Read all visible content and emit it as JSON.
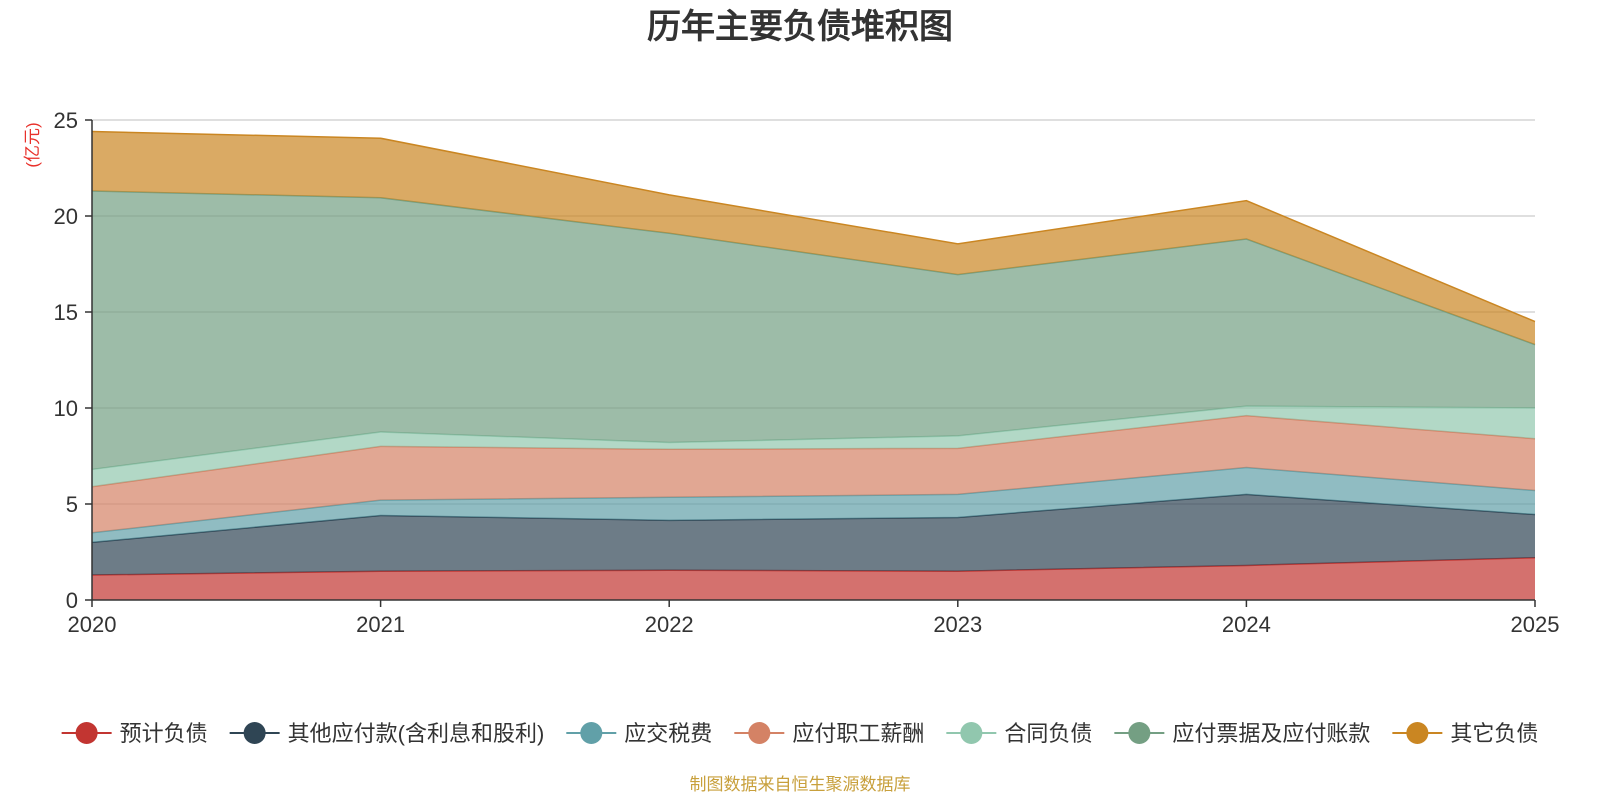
{
  "chart_data": {
    "type": "area",
    "stacked": true,
    "title": "历年主要负债堆积图",
    "ylabel": "(亿元)",
    "ylim": [
      0,
      25
    ],
    "yticks": [
      0,
      5,
      10,
      15,
      20,
      25
    ],
    "categories": [
      "2020",
      "2021",
      "2022",
      "2023",
      "2024",
      "2025"
    ],
    "grid": true,
    "legend_position": "bottom",
    "source": "制图数据来自恒生聚源数据库",
    "series": [
      {
        "name": "预计负债",
        "color": "#c23531",
        "values": [
          1.3,
          1.5,
          1.55,
          1.5,
          1.8,
          2.2
        ]
      },
      {
        "name": "其他应付款(含利息和股利)",
        "color": "#2f4554",
        "values": [
          1.7,
          2.9,
          2.6,
          2.8,
          3.7,
          2.25
        ]
      },
      {
        "name": "应交税费",
        "color": "#61a0a8",
        "values": [
          0.5,
          0.8,
          1.2,
          1.2,
          1.4,
          1.25
        ]
      },
      {
        "name": "应付职工薪酬",
        "color": "#d48265",
        "values": [
          2.4,
          2.8,
          2.5,
          2.4,
          2.7,
          2.7
        ]
      },
      {
        "name": "合同负债",
        "color": "#91c7ae",
        "values": [
          0.9,
          0.75,
          0.35,
          0.65,
          0.5,
          1.6
        ]
      },
      {
        "name": "应付票据及应付账款",
        "color": "#749f83",
        "values": [
          14.5,
          12.2,
          10.9,
          8.4,
          8.7,
          3.3
        ]
      },
      {
        "name": "其它负债",
        "color": "#ca8622",
        "values": [
          3.1,
          3.1,
          2.0,
          1.6,
          2.0,
          1.2
        ]
      }
    ]
  }
}
